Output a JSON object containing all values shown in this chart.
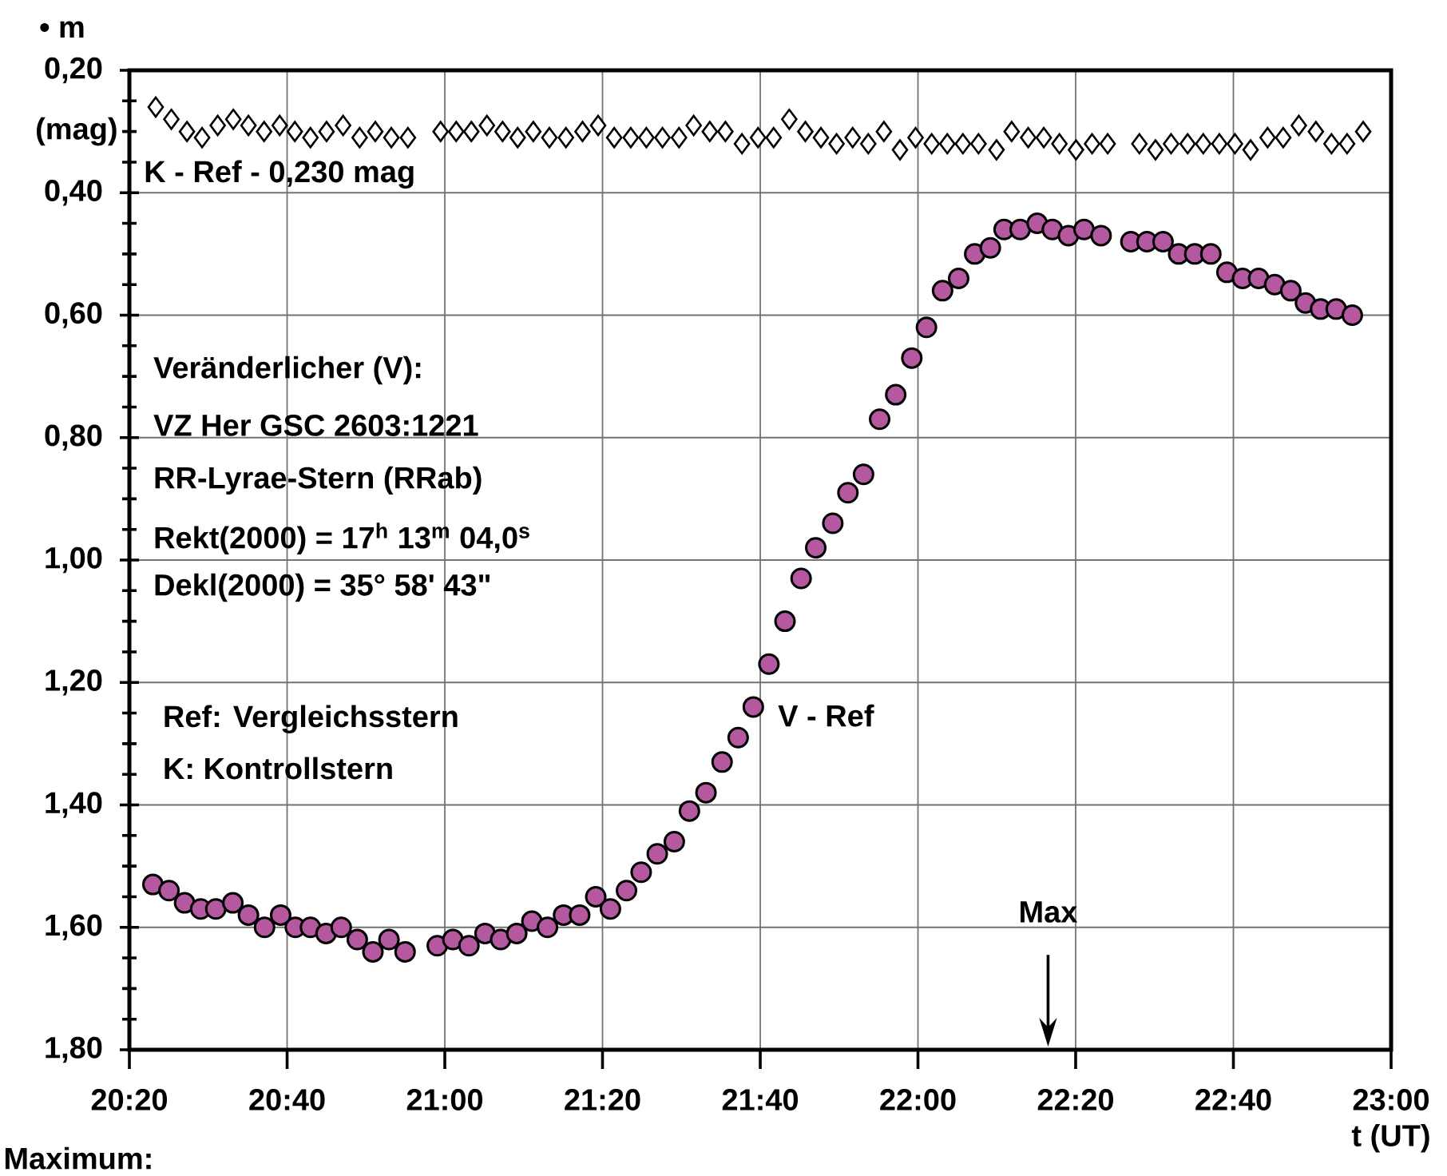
{
  "chart_data": {
    "type": "scatter",
    "xlabel": "t (UT)",
    "ylabel": "• m",
    "xlim": [
      20.3333,
      23.0
    ],
    "xticks": [
      {
        "value": 20.3333,
        "label": "20:20"
      },
      {
        "value": 20.6667,
        "label": "20:40"
      },
      {
        "value": 21.0,
        "label": "21:00"
      },
      {
        "value": 21.3333,
        "label": "21:20"
      },
      {
        "value": 21.6667,
        "label": "21:40"
      },
      {
        "value": 22.0,
        "label": "22:00"
      },
      {
        "value": 22.3333,
        "label": "22:20"
      },
      {
        "value": 22.6667,
        "label": "22:40"
      },
      {
        "value": 23.0,
        "label": "23:00"
      }
    ],
    "ylim": [
      1.8,
      0.2
    ],
    "yticks": [
      {
        "value": 0.2,
        "label": "0,20"
      },
      {
        "value": 0.4,
        "label": "0,40"
      },
      {
        "value": 0.6,
        "label": "0,60"
      },
      {
        "value": 0.8,
        "label": "0,80"
      },
      {
        "value": 1.0,
        "label": "1,00"
      },
      {
        "value": 1.2,
        "label": "1,20"
      },
      {
        "value": 1.4,
        "label": "1,40"
      },
      {
        "value": 1.6,
        "label": "1,60"
      },
      {
        "value": 1.8,
        "label": "1,80"
      }
    ],
    "grid": true,
    "series": [
      {
        "name": "K - Ref - 0,230 mag",
        "color": "#000000",
        "marker": "diamond",
        "x": [
          20.389,
          20.422,
          20.455,
          20.487,
          20.52,
          20.553,
          20.585,
          20.618,
          20.651,
          20.683,
          20.716,
          20.75,
          20.785,
          20.82,
          20.853,
          20.887,
          20.922,
          20.991,
          21.024,
          21.056,
          21.089,
          21.122,
          21.154,
          21.187,
          21.221,
          21.256,
          21.291,
          21.324,
          21.358,
          21.393,
          21.426,
          21.46,
          21.495,
          21.526,
          21.56,
          21.593,
          21.628,
          21.662,
          21.695,
          21.728,
          21.762,
          21.795,
          21.828,
          21.862,
          21.895,
          21.928,
          21.962,
          21.995,
          22.029,
          22.062,
          22.095,
          22.128,
          22.166,
          22.198,
          22.233,
          22.266,
          22.299,
          22.334,
          22.368,
          22.401,
          22.468,
          22.502,
          22.535,
          22.57,
          22.603,
          22.637,
          22.67,
          22.703,
          22.739,
          22.772,
          22.805,
          22.841,
          22.874,
          22.907,
          22.941
        ],
        "values": [
          0.26,
          0.28,
          0.3,
          0.31,
          0.29,
          0.28,
          0.29,
          0.3,
          0.29,
          0.3,
          0.31,
          0.3,
          0.29,
          0.31,
          0.3,
          0.31,
          0.31,
          0.3,
          0.3,
          0.3,
          0.29,
          0.3,
          0.31,
          0.3,
          0.31,
          0.31,
          0.3,
          0.29,
          0.31,
          0.31,
          0.31,
          0.31,
          0.31,
          0.29,
          0.3,
          0.3,
          0.32,
          0.31,
          0.31,
          0.28,
          0.3,
          0.31,
          0.32,
          0.31,
          0.32,
          0.3,
          0.33,
          0.31,
          0.32,
          0.32,
          0.32,
          0.32,
          0.33,
          0.3,
          0.31,
          0.31,
          0.32,
          0.33,
          0.32,
          0.32,
          0.32,
          0.33,
          0.32,
          0.32,
          0.32,
          0.32,
          0.32,
          0.33,
          0.31,
          0.31,
          0.29,
          0.3,
          0.32,
          0.32,
          0.3
        ]
      },
      {
        "name": "V - Ref",
        "color": "#b4589f",
        "marker": "circle",
        "x": [
          20.383,
          20.417,
          20.45,
          20.484,
          20.516,
          20.552,
          20.585,
          20.619,
          20.653,
          20.684,
          20.716,
          20.749,
          20.781,
          20.815,
          20.848,
          20.882,
          20.916,
          20.984,
          21.017,
          21.051,
          21.085,
          21.118,
          21.152,
          21.184,
          21.217,
          21.251,
          21.285,
          21.319,
          21.35,
          21.384,
          21.415,
          21.449,
          21.485,
          21.517,
          21.552,
          21.586,
          21.62,
          21.652,
          21.685,
          21.719,
          21.753,
          21.784,
          21.82,
          21.852,
          21.885,
          21.919,
          21.953,
          21.987,
          22.018,
          22.052,
          22.086,
          22.12,
          22.153,
          22.182,
          22.216,
          22.252,
          22.284,
          22.318,
          22.351,
          22.387,
          22.45,
          22.484,
          22.518,
          22.551,
          22.585,
          22.619,
          22.653,
          22.686,
          22.72,
          22.754,
          22.788,
          22.819,
          22.851,
          22.884,
          22.918
        ],
        "values": [
          1.53,
          1.54,
          1.56,
          1.57,
          1.57,
          1.56,
          1.58,
          1.6,
          1.58,
          1.6,
          1.6,
          1.61,
          1.6,
          1.62,
          1.64,
          1.62,
          1.64,
          1.63,
          1.62,
          1.63,
          1.61,
          1.62,
          1.61,
          1.59,
          1.6,
          1.58,
          1.58,
          1.55,
          1.57,
          1.54,
          1.51,
          1.48,
          1.46,
          1.41,
          1.38,
          1.33,
          1.29,
          1.24,
          1.17,
          1.1,
          1.03,
          0.98,
          0.94,
          0.89,
          0.86,
          0.77,
          0.73,
          0.67,
          0.62,
          0.56,
          0.54,
          0.5,
          0.49,
          0.46,
          0.46,
          0.45,
          0.46,
          0.47,
          0.46,
          0.47,
          0.48,
          0.48,
          0.48,
          0.5,
          0.5,
          0.5,
          0.53,
          0.54,
          0.54,
          0.55,
          0.56,
          0.58,
          0.59,
          0.59,
          0.6
        ]
      }
    ],
    "annotations": [
      "(mag)",
      "Veränderlicher (V):",
      "VZ Her GSC 2603:1221",
      "RR-Lyrae-Stern (RRab)",
      "Rekt(2000) = 17$^{h}$ 13$^{m}$ 04,0$^{s}$",
      "Dekl(2000) = 35°  58' 43\"",
      "Ref: Vergleichsstern",
      "K: Kontrollstern",
      "Max",
      "Maximum:"
    ]
  }
}
